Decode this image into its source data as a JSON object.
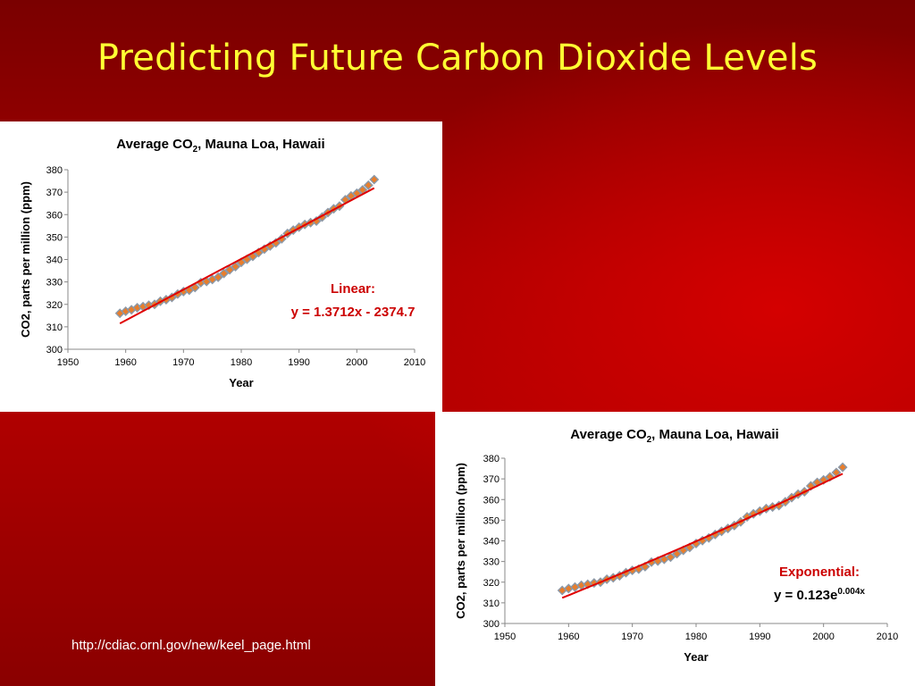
{
  "slide": {
    "title": "Predicting Future Carbon Dioxide Levels",
    "source": "http://cdiac.ornl.gov/new/keel_page.html"
  },
  "colors": {
    "title": "#ffff33",
    "marker_fill": "#e87e2c",
    "marker_stroke": "#8c99a8",
    "trend": "#e00000",
    "equation": "#cc0000"
  },
  "chart_data": [
    {
      "type": "scatter",
      "title": "Average CO2, Mauna Loa, Hawaii",
      "xlabel": "Year",
      "ylabel": "CO2, parts per million (ppm)",
      "xlim": [
        1950,
        2010
      ],
      "ylim": [
        300,
        380
      ],
      "xticks": [
        "1950",
        "1960",
        "1970",
        "1980",
        "1990",
        "2000",
        "2010"
      ],
      "yticks": [
        "300",
        "310",
        "320",
        "330",
        "340",
        "350",
        "360",
        "370",
        "380"
      ],
      "grid": false,
      "x": [
        1959,
        1960,
        1961,
        1962,
        1963,
        1964,
        1965,
        1966,
        1967,
        1968,
        1969,
        1970,
        1971,
        1972,
        1973,
        1974,
        1975,
        1976,
        1977,
        1978,
        1979,
        1980,
        1981,
        1982,
        1983,
        1984,
        1985,
        1986,
        1987,
        1988,
        1989,
        1990,
        1991,
        1992,
        1993,
        1994,
        1995,
        1996,
        1997,
        1998,
        1999,
        2000,
        2001,
        2002,
        2003
      ],
      "y": [
        316.0,
        316.9,
        317.6,
        318.5,
        319.0,
        319.6,
        320.0,
        321.4,
        322.1,
        323.1,
        324.6,
        325.7,
        326.3,
        327.5,
        329.7,
        330.2,
        331.1,
        332.1,
        333.8,
        335.4,
        336.8,
        338.7,
        340.1,
        341.4,
        343.1,
        344.6,
        346.0,
        347.4,
        349.2,
        351.6,
        353.1,
        354.4,
        355.6,
        356.4,
        357.1,
        358.9,
        360.9,
        362.6,
        363.8,
        366.6,
        368.3,
        369.5,
        371.0,
        373.1,
        375.6
      ],
      "trendline": {
        "type": "linear",
        "slope": 1.3712,
        "intercept": -2374.7,
        "x_range": [
          1959,
          2003
        ]
      },
      "annotation": {
        "label": "Linear:",
        "equation": "y = 1.3712x - 2374.7"
      }
    },
    {
      "type": "scatter",
      "title": "Average CO2, Mauna Loa, Hawaii",
      "xlabel": "Year",
      "ylabel": "CO2, parts per million (ppm)",
      "xlim": [
        1950,
        2010
      ],
      "ylim": [
        300,
        380
      ],
      "xticks": [
        "1950",
        "1960",
        "1970",
        "1980",
        "1990",
        "2000",
        "2010"
      ],
      "yticks": [
        "300",
        "310",
        "320",
        "330",
        "340",
        "350",
        "360",
        "370",
        "380"
      ],
      "grid": false,
      "x": [
        1959,
        1960,
        1961,
        1962,
        1963,
        1964,
        1965,
        1966,
        1967,
        1968,
        1969,
        1970,
        1971,
        1972,
        1973,
        1974,
        1975,
        1976,
        1977,
        1978,
        1979,
        1980,
        1981,
        1982,
        1983,
        1984,
        1985,
        1986,
        1987,
        1988,
        1989,
        1990,
        1991,
        1992,
        1993,
        1994,
        1995,
        1996,
        1997,
        1998,
        1999,
        2000,
        2001,
        2002,
        2003
      ],
      "y": [
        316.0,
        316.9,
        317.6,
        318.5,
        319.0,
        319.6,
        320.0,
        321.4,
        322.1,
        323.1,
        324.6,
        325.7,
        326.3,
        327.5,
        329.7,
        330.2,
        331.1,
        332.1,
        333.8,
        335.4,
        336.8,
        338.7,
        340.1,
        341.4,
        343.1,
        344.6,
        346.0,
        347.4,
        349.2,
        351.6,
        353.1,
        354.4,
        355.6,
        356.4,
        357.1,
        358.9,
        360.9,
        362.6,
        363.8,
        366.6,
        368.3,
        369.5,
        371.0,
        373.1,
        375.6
      ],
      "trendline": {
        "type": "exponential",
        "start": [
          1959,
          312.4
        ],
        "end": [
          2003,
          372.5
        ]
      },
      "annotation": {
        "label": "Exponential:",
        "equation_base": "y = 0.123e",
        "equation_exp": "0.004x"
      }
    }
  ]
}
